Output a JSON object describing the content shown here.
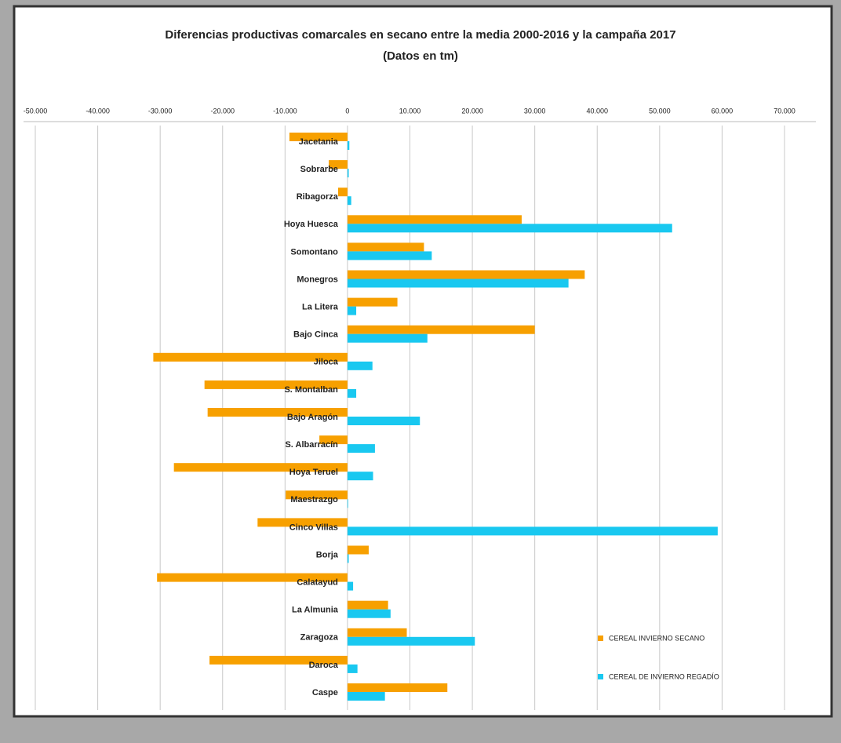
{
  "chart_data": {
    "type": "hbar",
    "title": "Diferencias productivas comarcales en secano entre la media 2000-2016 y la campaña 2017",
    "subtitle": "(Datos en tm)",
    "categories": [
      "Jacetania",
      "Sobrarbe",
      "Ribagorza",
      "Hoya  Huesca",
      "Somontano",
      "Monegros",
      "La Litera",
      "Bajo Cinca",
      "Jiloca",
      "S. Montalban",
      "Bajo Aragón",
      "S. Albarracín",
      "Hoya  Teruel",
      "Maestrazgo",
      "Cinco Villas",
      "Borja",
      "Calatayud",
      "La Almunia",
      "Zaragoza",
      "Daroca",
      "Caspe"
    ],
    "series": [
      {
        "name": "CEREAL INVIERNO SECANO",
        "color": "#f7a000",
        "values": [
          -9300,
          -3000,
          -1500,
          27900,
          12250,
          38000,
          8000,
          30000,
          -31100,
          -22900,
          -22400,
          -4500,
          -27800,
          -9900,
          -14400,
          3400,
          -30500,
          6500,
          9500,
          -22100,
          16000
        ]
      },
      {
        "name": "CEREAL DE INVIERNO REGADÍO",
        "color": "#19c8f0",
        "values": [
          300,
          200,
          600,
          52000,
          13500,
          35400,
          1400,
          12800,
          4000,
          1400,
          11600,
          4400,
          4100,
          100,
          59300,
          200,
          900,
          6900,
          20400,
          1600,
          6000
        ]
      }
    ],
    "xlim": [
      -50000,
      70000
    ],
    "xticks": [
      {
        "value": -50000,
        "label": "-50.000"
      },
      {
        "value": -40000,
        "label": "-40.000"
      },
      {
        "value": -30000,
        "label": "-30.000"
      },
      {
        "value": -20000,
        "label": "-20.000"
      },
      {
        "value": -10000,
        "label": "-10.000"
      },
      0,
      {
        "value": 10000,
        "label": "10.000"
      },
      {
        "value": 20000,
        "label": "20.000"
      },
      {
        "value": 30000,
        "label": "30.000"
      },
      {
        "value": 40000,
        "label": "40.000"
      },
      {
        "value": 50000,
        "label": "50.000"
      },
      {
        "value": 60000,
        "label": "60.000"
      },
      {
        "value": 70000,
        "label": "70.000"
      }
    ],
    "grid": true,
    "legend": "lower-right"
  }
}
